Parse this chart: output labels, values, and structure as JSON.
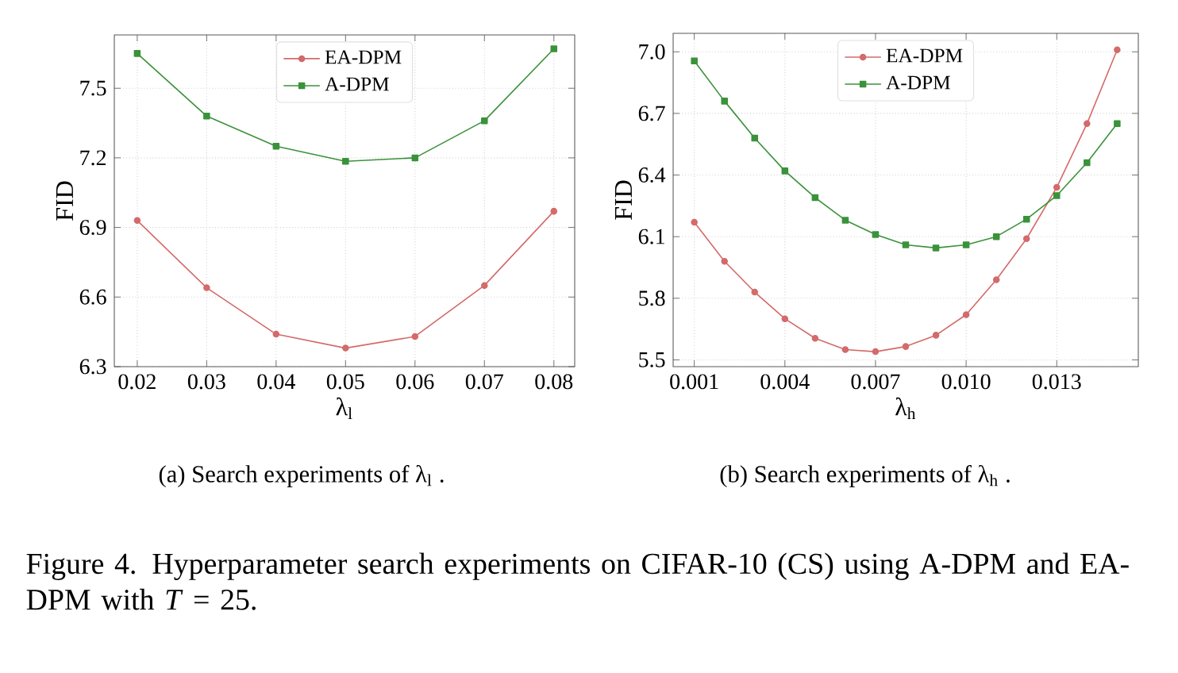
{
  "chart_data": [
    {
      "type": "line",
      "subtitle": "(a) Search experiments of λ$_{l}$ .",
      "xlabel": "λ$_{l}$",
      "ylabel": "FID",
      "x": [
        0.02,
        0.03,
        0.04,
        0.05,
        0.06,
        0.07,
        0.08
      ],
      "series": [
        {
          "name": "EA-DPM",
          "color": "#d46a6a",
          "marker": "circle",
          "values": [
            6.93,
            6.64,
            6.44,
            6.38,
            6.43,
            6.65,
            6.97
          ]
        },
        {
          "name": "A-DPM",
          "color": "#3a923a",
          "marker": "square",
          "values": [
            7.65,
            7.38,
            7.25,
            7.185,
            7.2,
            7.36,
            7.67
          ]
        }
      ],
      "xlim": [
        0.0167,
        0.083
      ],
      "ylim": [
        6.3,
        7.73
      ],
      "xticks": [
        0.02,
        0.03,
        0.04,
        0.05,
        0.06,
        0.07,
        0.08
      ],
      "yticks": [
        6.3,
        6.6,
        6.9,
        7.2,
        7.5
      ],
      "grid": true,
      "legend": "top",
      "line_style": "solid",
      "annotations": [
        "Figure 4. Hyperparameter search experiments on CIFAR-10 (CS) using A-DPM and EA-DPM with *T* = 25."
      ]
    },
    {
      "type": "line",
      "subtitle": "(b) Search experiments of λ$_{h}$ .",
      "xlabel": "λ$_{h}$",
      "ylabel": "FID",
      "x": [
        0.001,
        0.002,
        0.003,
        0.004,
        0.005,
        0.006,
        0.007,
        0.008,
        0.009,
        0.01,
        0.011,
        0.012,
        0.013,
        0.014,
        0.015
      ],
      "series": [
        {
          "name": "EA-DPM",
          "color": "#d46a6a",
          "marker": "circle",
          "values": [
            6.17,
            5.98,
            5.83,
            5.7,
            5.605,
            5.55,
            5.54,
            5.565,
            5.62,
            5.72,
            5.89,
            6.09,
            6.34,
            6.65,
            7.01
          ]
        },
        {
          "name": "A-DPM",
          "color": "#3a923a",
          "marker": "square",
          "values": [
            6.956,
            6.76,
            6.58,
            6.42,
            6.29,
            6.18,
            6.11,
            6.06,
            6.045,
            6.06,
            6.1,
            6.185,
            6.3,
            6.46,
            6.65
          ]
        }
      ],
      "xlim": [
        0.0003,
        0.0157
      ],
      "ylim": [
        5.467,
        7.09
      ],
      "xticks": [
        0.001,
        0.004,
        0.007,
        {
          "value": 0.01,
          "label": "0.010"
        },
        0.013
      ],
      "yticks": [
        5.5,
        5.8,
        6.1,
        6.4,
        6.7,
        {
          "value": 7,
          "label": "7.0"
        }
      ],
      "grid": true,
      "legend": "top",
      "line_style": "solid"
    }
  ]
}
